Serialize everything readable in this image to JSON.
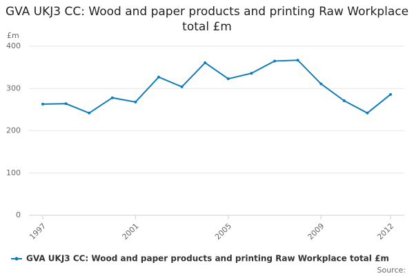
{
  "chart_data": {
    "type": "line",
    "title": "GVA UKJ3 CC: Wood and paper products and printing Raw Workplace total £m",
    "y_label": "£m",
    "source": "Source:",
    "x": [
      1997,
      1998,
      1999,
      2000,
      2001,
      2002,
      2003,
      2004,
      2005,
      2006,
      2007,
      2008,
      2009,
      2010,
      2011,
      2012
    ],
    "series": [
      {
        "name": "GVA UKJ3 CC: Wood and paper products and printing Raw Workplace total £m",
        "color": "#0e7cb8",
        "values": [
          263,
          264,
          242,
          278,
          268,
          327,
          304,
          361,
          323,
          336,
          365,
          367,
          311,
          271,
          242,
          286
        ]
      }
    ],
    "xlim": [
      1997,
      2012
    ],
    "xticks": [
      1997,
      2001,
      2005,
      2009,
      2012
    ],
    "ylim": [
      0,
      400
    ],
    "yticks": [
      0,
      100,
      200,
      300,
      400
    ],
    "grid": true
  }
}
